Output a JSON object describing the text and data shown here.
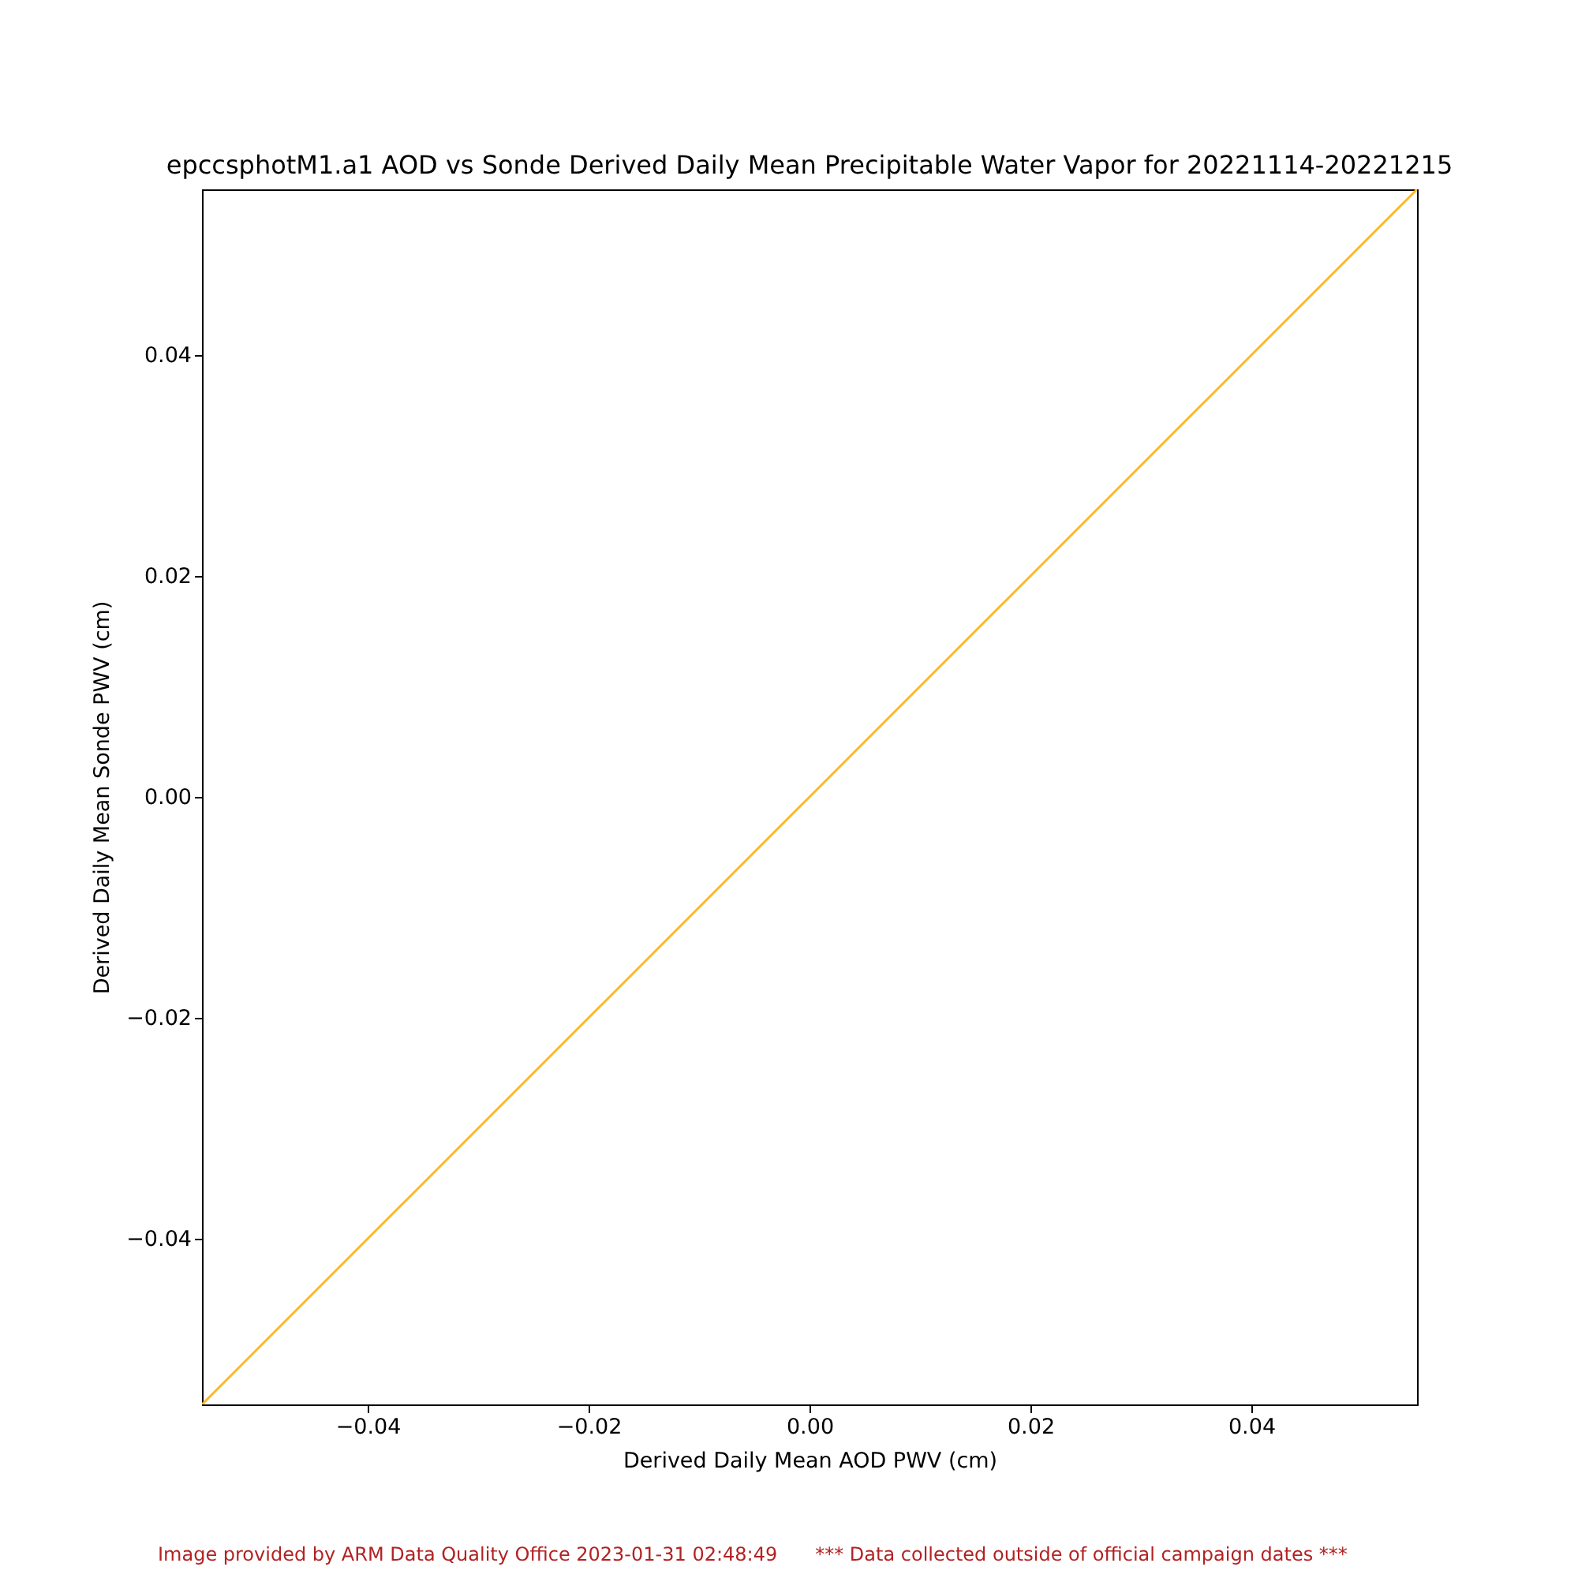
{
  "chart_data": {
    "type": "line",
    "title": "epccsphotM1.a1 AOD vs Sonde Derived Daily Mean Precipitable Water Vapor for 20221114-20221215",
    "xlabel": "Derived Daily Mean AOD PWV (cm)",
    "ylabel": "Derived Daily Mean Sonde PWV (cm)",
    "x": [
      -0.055,
      0.055
    ],
    "series": [
      {
        "color": "#fbb829",
        "values": [
          -0.055,
          0.055
        ]
      }
    ],
    "xlim": [
      -0.055,
      0.055
    ],
    "ylim": [
      -0.055,
      0.055
    ],
    "xticks": [
      {
        "value": -0.04,
        "label": "−0.04"
      },
      {
        "value": -0.02,
        "label": "−0.02"
      },
      {
        "value": 0,
        "label": "0.00"
      },
      {
        "value": 0.02,
        "label": "0.02"
      },
      {
        "value": 0.04,
        "label": "0.04"
      }
    ],
    "yticks": [
      {
        "value": -0.04,
        "label": "−0.04"
      },
      {
        "value": -0.02,
        "label": "−0.02"
      },
      {
        "value": 0,
        "label": "0.00"
      },
      {
        "value": 0.02,
        "label": "0.02"
      },
      {
        "value": 0.04,
        "label": "0.04"
      }
    ],
    "grid": false,
    "annotations": [
      "Image provided by ARM Data Quality Office 2023-01-31 02:48:49",
      "*** Data collected outside of official campaign dates ***"
    ]
  }
}
